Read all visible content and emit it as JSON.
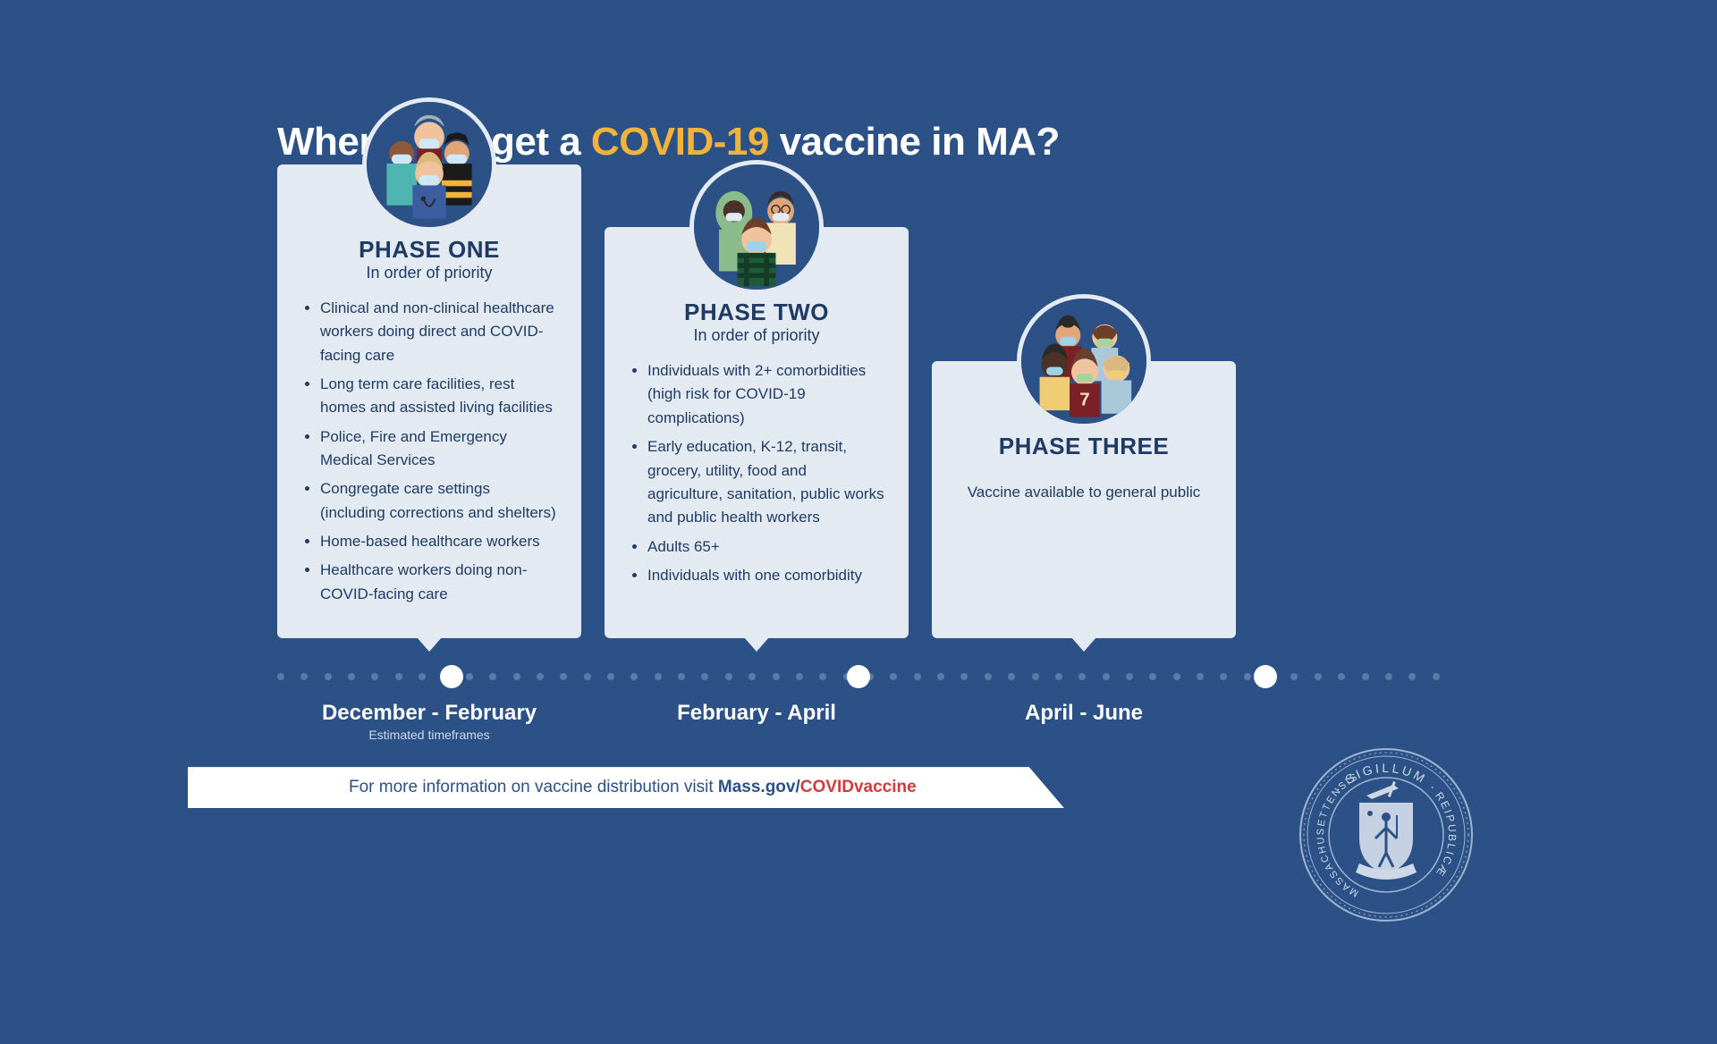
{
  "type": "infographic",
  "background_color": "#2c5186",
  "card_background": "#e3eaf2",
  "text_color": "#1f3b63",
  "accent_color": "#f2b33d",
  "red_color": "#d23b3b",
  "title_parts": {
    "a": "When can I get a ",
    "b": "COVID-19",
    "c": " vaccine in MA?"
  },
  "phases": [
    {
      "title": "PHASE ONE",
      "subtitle": "In order of priority",
      "bullets": [
        "Clinical and non-clinical healthcare workers doing direct and COVID-facing care",
        "Long term care facilities, rest homes and assisted living facilities",
        "Police, Fire and Emergency Medical Services",
        "Congregate care settings (including corrections and shelters)",
        "Home-based healthcare workers",
        "Healthcare workers doing non-COVID-facing care"
      ],
      "timeframe": "December - February"
    },
    {
      "title": "PHASE TWO",
      "subtitle": "In order of priority",
      "bullets": [
        "Individuals with 2+ comorbidities (high risk for COVID-19 complications)",
        "Early education, K-12, transit, grocery, utility, food and agriculture, sanitation, public works and public health workers",
        "Adults 65+",
        "Individuals with one comorbidity"
      ],
      "timeframe": "February - April"
    },
    {
      "title": "PHASE THREE",
      "body": "Vaccine available to general public",
      "timeframe": "April - June"
    }
  ],
  "estimated_label": "Estimated timeframes",
  "footer": {
    "prefix": "For more information on vaccine distribution visit ",
    "bold": "Mass.gov/",
    "red": "COVIDvaccine"
  },
  "seal_text_top": "SIGILLUM",
  "seal_text_left": "MASSACHUSETTENSIS",
  "seal_text_right": "REIPUBLICÆ",
  "timeline": {
    "dot_color": "#5b7aa8",
    "marker_color": "#ffffff",
    "num_dots": 50,
    "marker_positions_pct": [
      15,
      50,
      85
    ]
  },
  "avatar_colors": {
    "phase1": {
      "scrubs": "#4eb5b0",
      "nurse": "#3b5ea0",
      "ff_yellow": "#f2b33d",
      "ff_dark": "#1b1b1b",
      "grey": "#a7b0b8",
      "maroon": "#7a2026",
      "skin1": "#f1c29e",
      "skin2": "#8c5a3b",
      "skin3": "#e0a677",
      "mask": "#cfe8f5"
    },
    "phase2": {
      "hijab": "#8bbb8a",
      "plaid": "#1f5a3a",
      "plaid2": "#143d27",
      "blouse": "#f0e3b7",
      "skin1": "#4a3226",
      "skin2": "#f1c29e",
      "skin3": "#e0a677",
      "hair": "#3a2a22",
      "mask": "#9ed2e6"
    },
    "phase3": {
      "maroon": "#7a2026",
      "yellow": "#f0cd74",
      "blue": "#a9c8d9",
      "skin1": "#4a3226",
      "skin2": "#f1c29e",
      "skin3": "#e0a677",
      "hair1": "#2a2a2a",
      "hair2": "#6b3f28",
      "mask1": "#9ed2e6",
      "mask2": "#a6d49a",
      "mask3": "#f0cd74"
    }
  }
}
